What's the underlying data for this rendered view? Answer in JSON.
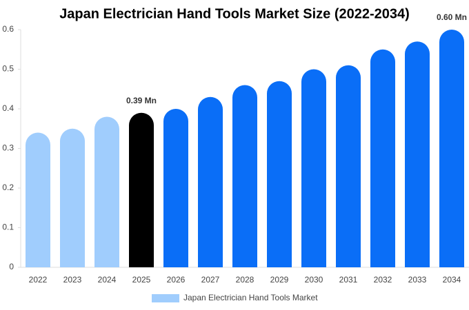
{
  "chart_data": {
    "type": "bar",
    "title": "Japan Electrician Hand Tools Market Size (2022-2034)",
    "categories": [
      "2022",
      "2023",
      "2024",
      "2025",
      "2026",
      "2027",
      "2028",
      "2029",
      "2030",
      "2031",
      "2032",
      "2033",
      "2034"
    ],
    "series": [
      {
        "name": "Japan Electrician Hand Tools Market",
        "color": "#a0cdfd",
        "colors": [
          "#a0cdfd",
          "#a0cdfd",
          "#a0cdfd",
          "#000000",
          "#0a6ef7",
          "#0a6ef7",
          "#0a6ef7",
          "#0a6ef7",
          "#0a6ef7",
          "#0a6ef7",
          "#0a6ef7",
          "#0a6ef7",
          "#0a6ef7"
        ],
        "values": [
          0.34,
          0.35,
          0.38,
          0.39,
          0.4,
          0.43,
          0.46,
          0.47,
          0.5,
          0.51,
          0.55,
          0.57,
          0.6
        ],
        "value_labels": [
          null,
          null,
          null,
          "0.39 Mn",
          null,
          null,
          null,
          null,
          null,
          null,
          null,
          null,
          "0.60 Mn"
        ]
      }
    ],
    "ylim": [
      0,
      0.6
    ],
    "yticks": [
      0,
      0.1,
      0.2,
      0.3,
      0.4,
      0.5,
      0.6
    ],
    "grid": false,
    "legend": "bottom"
  }
}
